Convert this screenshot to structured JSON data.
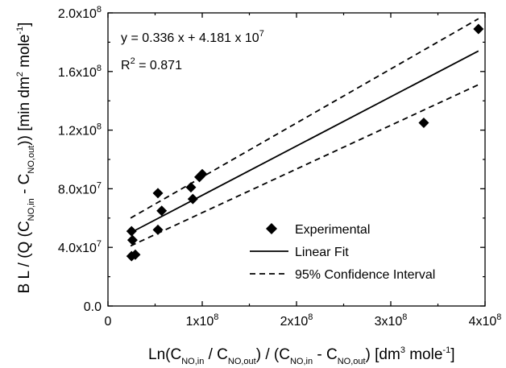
{
  "chart_data": {
    "type": "scatter",
    "xlabel_parts": [
      "Ln(C",
      "NO,in",
      " / C",
      "NO,out",
      ") / (C",
      "NO,in",
      " - C",
      "NO,out",
      ") [dm",
      "3",
      " mole",
      "-1",
      "]"
    ],
    "ylabel_parts": [
      "B L / (Q (C",
      "NO,in",
      " - C",
      "NO,out",
      ")) [min dm",
      "2",
      " mole",
      "-1",
      "]"
    ],
    "xlim": [
      0,
      400000000
    ],
    "ylim": [
      0,
      200000000
    ],
    "x_ticks": [
      {
        "value": 0,
        "mant": "0",
        "exp": ""
      },
      {
        "value": 100000000,
        "mant": "1x10",
        "exp": "8"
      },
      {
        "value": 200000000,
        "mant": "2x10",
        "exp": "8"
      },
      {
        "value": 300000000,
        "mant": "3x10",
        "exp": "8"
      },
      {
        "value": 400000000,
        "mant": "4x10",
        "exp": "8"
      }
    ],
    "y_ticks": [
      {
        "value": 0,
        "mant": "0.0",
        "exp": ""
      },
      {
        "value": 40000000,
        "mant": "4.0x10",
        "exp": "7"
      },
      {
        "value": 80000000,
        "mant": "8.0x10",
        "exp": "7"
      },
      {
        "value": 120000000,
        "mant": "1.2x10",
        "exp": "8"
      },
      {
        "value": 160000000,
        "mant": "1.6x10",
        "exp": "8"
      },
      {
        "value": 200000000,
        "mant": "2.0x10",
        "exp": "8"
      }
    ],
    "series": [
      {
        "name": "Experimental",
        "type": "scatter",
        "marker": "diamond",
        "color": "#000000",
        "points": [
          {
            "x": 25000000,
            "y": 51000000
          },
          {
            "x": 26000000,
            "y": 45000000
          },
          {
            "x": 25000000,
            "y": 34000000
          },
          {
            "x": 29000000,
            "y": 35000000
          },
          {
            "x": 53000000,
            "y": 77000000
          },
          {
            "x": 57000000,
            "y": 65000000
          },
          {
            "x": 53000000,
            "y": 52000000
          },
          {
            "x": 88000000,
            "y": 81000000
          },
          {
            "x": 90000000,
            "y": 73000000
          },
          {
            "x": 97000000,
            "y": 88000000
          },
          {
            "x": 100000000,
            "y": 90000000
          },
          {
            "x": 335000000,
            "y": 125000000
          },
          {
            "x": 393000000,
            "y": 189000000
          }
        ]
      },
      {
        "name": "Linear Fit",
        "type": "line",
        "style": "solid",
        "color": "#000000",
        "x": [
          24000000,
          393000000
        ],
        "y": [
          50000000,
          174000000
        ]
      },
      {
        "name": "95% Confidence Interval",
        "type": "line",
        "style": "dashed",
        "color": "#000000",
        "x": [
          24000000,
          393000000
        ],
        "y": [
          60000000,
          196000000
        ]
      },
      {
        "name": "95% Confidence Interval",
        "type": "line",
        "style": "dashed",
        "color": "#000000",
        "x": [
          24000000,
          393000000
        ],
        "y": [
          41000000,
          151000000
        ]
      }
    ],
    "annotations": {
      "equation": {
        "base": "y = 0.336 x + 4.181 x 10",
        "exp": "7"
      },
      "r2": {
        "pre": "R",
        "sup": "2",
        "post": " = 0.871"
      }
    },
    "legend": {
      "placement": "lower-right",
      "entries": [
        "Experimental",
        "Linear Fit",
        "95% Confidence Interval"
      ]
    },
    "grid": false
  }
}
